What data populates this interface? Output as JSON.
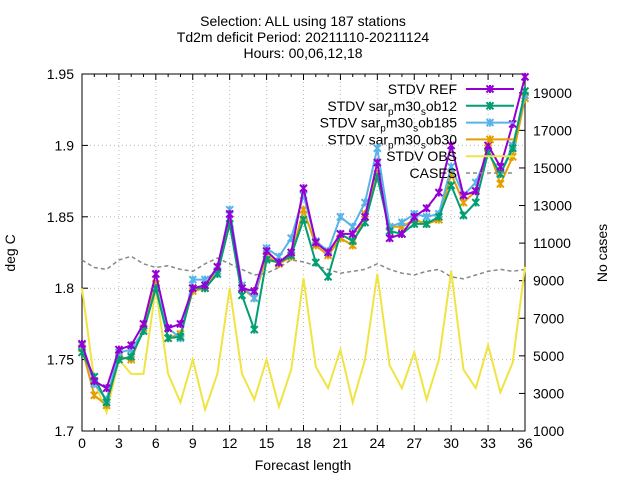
{
  "chart_data": {
    "type": "line",
    "title_lines": [
      "Selection: ALL using    187 stations",
      "Td2m deficit    Period: 20211110-20211124",
      "Hours: 00,06,12,18"
    ],
    "xlabel": "Forecast length",
    "ylabel": "deg C",
    "y2label": "No cases",
    "xlim": [
      0,
      36
    ],
    "ylim": [
      1.7,
      1.95
    ],
    "y2lim": [
      1000,
      20000
    ],
    "x_ticks": [
      0,
      3,
      6,
      9,
      12,
      15,
      18,
      21,
      24,
      27,
      30,
      33,
      36
    ],
    "y_ticks": [
      1.7,
      1.75,
      1.8,
      1.85,
      1.9,
      1.95
    ],
    "y_tick_labels": [
      "1.7",
      "1.75",
      "1.8",
      "1.85",
      "1.9",
      "1.95"
    ],
    "y2_ticks": [
      1000,
      3000,
      5000,
      7000,
      9000,
      11000,
      13000,
      15000,
      17000,
      19000
    ],
    "grid": true,
    "legend_position": "top-right",
    "x": [
      0,
      1,
      2,
      3,
      4,
      5,
      6,
      7,
      8,
      9,
      10,
      11,
      12,
      13,
      14,
      15,
      16,
      17,
      18,
      19,
      20,
      21,
      22,
      23,
      24,
      25,
      26,
      27,
      28,
      29,
      30,
      31,
      32,
      33,
      34,
      35,
      36
    ],
    "series": [
      {
        "name": "STDV REF",
        "color": "#9400d3",
        "marker": "x",
        "axis": "y",
        "values": [
          1.761,
          1.735,
          1.73,
          1.757,
          1.76,
          1.775,
          1.81,
          1.772,
          1.775,
          1.8,
          1.802,
          1.815,
          1.852,
          1.8,
          1.798,
          1.826,
          1.818,
          1.825,
          1.87,
          1.832,
          1.825,
          1.838,
          1.838,
          1.85,
          1.888,
          1.835,
          1.838,
          1.85,
          1.856,
          1.867,
          1.9,
          1.865,
          1.868,
          1.9,
          1.885,
          1.915,
          1.948
        ]
      },
      {
        "name": "STDV sar_pm30_sob12",
        "color": "#009e73",
        "marker": "x",
        "axis": "y",
        "values": [
          1.755,
          1.738,
          1.72,
          1.75,
          1.752,
          1.77,
          1.8,
          1.765,
          1.766,
          1.8,
          1.8,
          1.81,
          1.845,
          1.795,
          1.771,
          1.82,
          1.818,
          1.823,
          1.848,
          1.818,
          1.808,
          1.838,
          1.833,
          1.846,
          1.878,
          1.84,
          1.838,
          1.845,
          1.845,
          1.85,
          1.872,
          1.851,
          1.86,
          1.895,
          1.88,
          1.898,
          1.938
        ]
      },
      {
        "name": "STDV sar_pm30_sob185",
        "color": "#56b4e9",
        "marker": "x",
        "axis": "y",
        "values": [
          1.76,
          1.733,
          1.722,
          1.755,
          1.757,
          1.77,
          1.8,
          1.772,
          1.765,
          1.806,
          1.806,
          1.812,
          1.855,
          1.802,
          1.793,
          1.828,
          1.822,
          1.835,
          1.865,
          1.833,
          1.826,
          1.85,
          1.843,
          1.86,
          1.898,
          1.843,
          1.846,
          1.852,
          1.85,
          1.852,
          1.885,
          1.865,
          1.874,
          1.895,
          1.88,
          1.9,
          1.935
        ]
      },
      {
        "name": "STDV sar_pm30_sob30",
        "color": "#e69f00",
        "marker": "x",
        "axis": "y",
        "values": [
          1.758,
          1.725,
          1.718,
          1.752,
          1.75,
          1.772,
          1.803,
          1.765,
          1.768,
          1.798,
          1.8,
          1.812,
          1.845,
          1.8,
          1.793,
          1.823,
          1.817,
          1.822,
          1.855,
          1.83,
          1.823,
          1.835,
          1.83,
          1.852,
          1.88,
          1.843,
          1.843,
          1.848,
          1.845,
          1.848,
          1.88,
          1.86,
          1.868,
          1.898,
          1.873,
          1.892,
          1.933
        ]
      },
      {
        "name": "STDV OBS",
        "color": "#f0e442",
        "marker": "none",
        "axis": "y",
        "values": [
          1.8,
          1.735,
          1.713,
          1.75,
          1.74,
          1.74,
          1.8,
          1.74,
          1.72,
          1.75,
          1.715,
          1.74,
          1.8,
          1.74,
          1.722,
          1.75,
          1.717,
          1.743,
          1.807,
          1.745,
          1.73,
          1.757,
          1.72,
          1.75,
          1.81,
          1.746,
          1.73,
          1.755,
          1.722,
          1.75,
          1.812,
          1.743,
          1.73,
          1.76,
          1.727,
          1.748,
          1.815
        ]
      },
      {
        "name": "CASES",
        "color": "#888888",
        "marker": "none",
        "dashed": true,
        "axis": "y2",
        "values": [
          10100,
          9700,
          9600,
          10100,
          10300,
          9900,
          9700,
          9800,
          9600,
          9500,
          9900,
          10200,
          9900,
          9600,
          9300,
          9400,
          9700,
          10100,
          10000,
          9800,
          9600,
          9400,
          9500,
          9600,
          9900,
          9600,
          9400,
          9300,
          9500,
          9600,
          9200,
          9100,
          9300,
          9500,
          9600,
          9500,
          9600
        ]
      }
    ],
    "legend": [
      {
        "label": "STDV REF"
      },
      {
        "label": "STDV sar",
        "sub": "p",
        "label_mid": "m30",
        "sub2": "s",
        "label_end": "ob12"
      },
      {
        "label": "STDV sar",
        "sub": "p",
        "label_mid": "m30",
        "sub2": "s",
        "label_end": "ob185"
      },
      {
        "label": "STDV sar",
        "sub": "p",
        "label_mid": "m30",
        "sub2": "s",
        "label_end": "ob30"
      },
      {
        "label": "STDV OBS"
      },
      {
        "label": "CASES"
      }
    ]
  }
}
